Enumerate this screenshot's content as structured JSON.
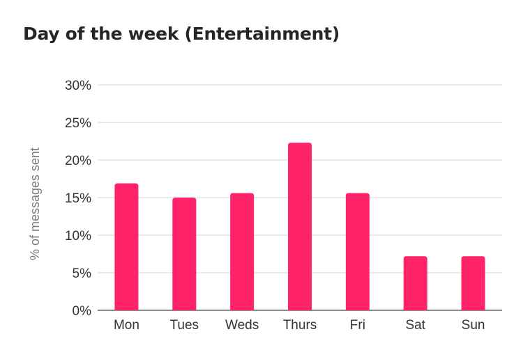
{
  "chart_data": {
    "type": "bar",
    "title": "Day of the week (Entertainment)",
    "xlabel": "",
    "ylabel": "% of messages sent",
    "categories": [
      "Mon",
      "Tues",
      "Weds",
      "Thurs",
      "Fri",
      "Sat",
      "Sun"
    ],
    "values": [
      16.9,
      15.0,
      15.6,
      22.3,
      15.6,
      7.2,
      7.2
    ],
    "ylim": [
      0,
      30
    ],
    "yticks": [
      0,
      5,
      10,
      15,
      20,
      25,
      30
    ],
    "ytick_labels": [
      "0%",
      "5%",
      "10%",
      "15%",
      "20%",
      "25%",
      "30%"
    ],
    "grid": true,
    "legend": "none",
    "bar_color": "#ff2469",
    "grid_color": "#e3e3e3",
    "axis_color": "#8c8c8c"
  }
}
